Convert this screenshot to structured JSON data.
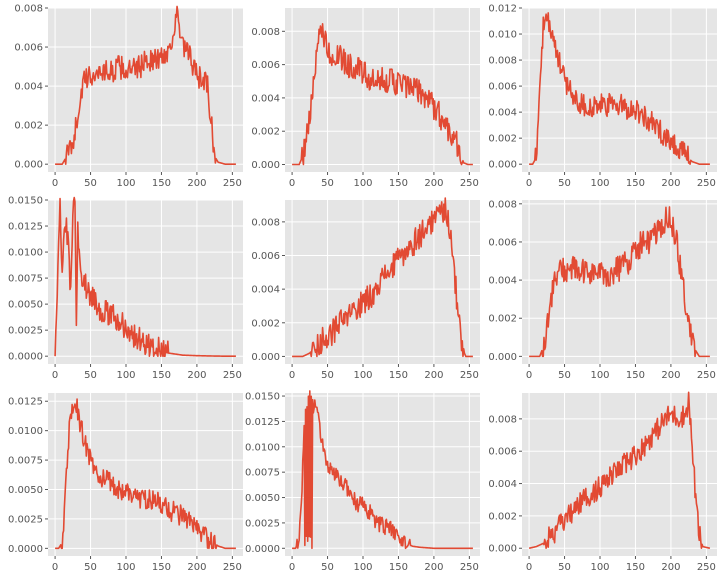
{
  "style": {
    "line_color": "#e24a33",
    "panel_background": "#e5e5e5",
    "grid_color": "#ffffff",
    "tick_label_color": "#555555"
  },
  "chart_data": [
    {
      "type": "line",
      "grid": true,
      "xlim": [
        -10,
        265
      ],
      "ylim": [
        -0.0004,
        0.008
      ],
      "xticks": [
        0,
        50,
        100,
        150,
        200,
        250
      ],
      "xtick_labels": [
        "0",
        "50",
        "100",
        "150",
        "200",
        "250"
      ],
      "yticks": [
        0,
        0.002,
        0.004,
        0.006,
        0.008
      ],
      "ytick_labels": [
        "0.000",
        "0.002",
        "0.004",
        "0.006",
        "0.008"
      ],
      "x": [
        0,
        10,
        18,
        25,
        30,
        35,
        40,
        50,
        60,
        70,
        80,
        90,
        100,
        110,
        120,
        130,
        140,
        150,
        160,
        170,
        172,
        175,
        180,
        190,
        200,
        210,
        215,
        218,
        222,
        225,
        230,
        240,
        255
      ],
      "values": [
        0,
        0,
        0.0005,
        0.0012,
        0.002,
        0.0033,
        0.0042,
        0.0045,
        0.0047,
        0.0048,
        0.0047,
        0.005,
        0.0048,
        0.0048,
        0.005,
        0.0054,
        0.0053,
        0.0055,
        0.0058,
        0.0072,
        0.0077,
        0.0069,
        0.006,
        0.0055,
        0.0045,
        0.0043,
        0.004,
        0.0028,
        0.0015,
        0.0004,
        0.0001,
        0,
        0
      ],
      "noise": 0.0006
    },
    {
      "type": "line",
      "grid": true,
      "xlim": [
        -10,
        265
      ],
      "ylim": [
        -0.00045,
        0.0094
      ],
      "xticks": [
        0,
        50,
        100,
        150,
        200,
        250
      ],
      "xtick_labels": [
        "0",
        "50",
        "100",
        "150",
        "200",
        "250"
      ],
      "yticks": [
        0,
        0.002,
        0.004,
        0.006,
        0.008
      ],
      "ytick_labels": [
        "0.000",
        "0.002",
        "0.004",
        "0.006",
        "0.008"
      ],
      "x": [
        0,
        10,
        15,
        20,
        25,
        30,
        35,
        40,
        45,
        50,
        60,
        70,
        80,
        90,
        100,
        110,
        120,
        130,
        140,
        150,
        160,
        170,
        180,
        190,
        200,
        210,
        220,
        230,
        238,
        242,
        248,
        255
      ],
      "values": [
        0,
        0,
        0.0005,
        0.0015,
        0.003,
        0.0045,
        0.0065,
        0.0085,
        0.0078,
        0.0068,
        0.0065,
        0.0063,
        0.006,
        0.0058,
        0.0055,
        0.005,
        0.0048,
        0.0052,
        0.005,
        0.0049,
        0.0047,
        0.0045,
        0.0044,
        0.004,
        0.0035,
        0.0028,
        0.0022,
        0.0016,
        0.0006,
        0.0001,
        0,
        0
      ],
      "noise": 0.0008
    },
    {
      "type": "line",
      "grid": true,
      "xlim": [
        -10,
        265
      ],
      "ylim": [
        -0.0006,
        0.012
      ],
      "xticks": [
        0,
        50,
        100,
        150,
        200,
        250
      ],
      "xtick_labels": [
        "0",
        "50",
        "100",
        "150",
        "200",
        "250"
      ],
      "yticks": [
        0,
        0.002,
        0.004,
        0.006,
        0.008,
        0.01,
        0.012
      ],
      "ytick_labels": [
        "0.000",
        "0.002",
        "0.004",
        "0.006",
        "0.008",
        "0.010",
        "0.012"
      ],
      "x": [
        0,
        5,
        10,
        12,
        15,
        18,
        20,
        25,
        30,
        35,
        40,
        45,
        50,
        55,
        60,
        70,
        80,
        90,
        100,
        110,
        120,
        130,
        140,
        150,
        160,
        170,
        180,
        190,
        200,
        210,
        220,
        230,
        240,
        255
      ],
      "values": [
        0,
        0,
        0.0005,
        0.002,
        0.006,
        0.009,
        0.0105,
        0.011,
        0.0105,
        0.0095,
        0.008,
        0.0075,
        0.0065,
        0.006,
        0.0055,
        0.0048,
        0.0045,
        0.0043,
        0.0045,
        0.0045,
        0.0046,
        0.0045,
        0.0043,
        0.0042,
        0.0038,
        0.0033,
        0.0028,
        0.0023,
        0.0018,
        0.0013,
        0.0007,
        0.0002,
        0,
        0
      ],
      "noise": 0.0009
    },
    {
      "type": "line",
      "grid": true,
      "xlim": [
        -10,
        265
      ],
      "ylim": [
        -0.00075,
        0.015
      ],
      "xticks": [
        0,
        50,
        100,
        150,
        200,
        250
      ],
      "xtick_labels": [
        "0",
        "50",
        "100",
        "150",
        "200",
        "250"
      ],
      "yticks": [
        0,
        0.0025,
        0.005,
        0.0075,
        0.01,
        0.0125,
        0.015
      ],
      "ytick_labels": [
        "0.0000",
        "0.0025",
        "0.0050",
        "0.0075",
        "0.0100",
        "0.0125",
        "0.0150"
      ],
      "x": [
        0,
        3,
        5,
        7,
        10,
        14,
        18,
        22,
        25,
        28,
        30,
        32,
        35,
        40,
        45,
        50,
        60,
        70,
        80,
        90,
        100,
        110,
        120,
        130,
        140,
        150,
        160,
        170,
        180,
        200,
        220,
        240,
        255
      ],
      "values": [
        0,
        0.005,
        0.012,
        0.0148,
        0.008,
        0.0135,
        0.011,
        0.006,
        0.014,
        0.0145,
        0.003,
        0.012,
        0.0085,
        0.0075,
        0.0065,
        0.006,
        0.0048,
        0.0042,
        0.0038,
        0.0035,
        0.0028,
        0.002,
        0.0016,
        0.0012,
        0.0008,
        0.0005,
        0.0003,
        0.0002,
        0.0001,
        5e-05,
        2e-05,
        0,
        0
      ],
      "noise": 0.0012
    },
    {
      "type": "line",
      "grid": true,
      "xlim": [
        -10,
        265
      ],
      "ylim": [
        -0.00045,
        0.0093
      ],
      "xticks": [
        0,
        50,
        100,
        150,
        200,
        250
      ],
      "xtick_labels": [
        "0",
        "50",
        "100",
        "150",
        "200",
        "250"
      ],
      "yticks": [
        0,
        0.002,
        0.004,
        0.006,
        0.008
      ],
      "ytick_labels": [
        "0.000",
        "0.002",
        "0.004",
        "0.006",
        "0.008"
      ],
      "x": [
        0,
        15,
        25,
        30,
        40,
        50,
        60,
        70,
        80,
        90,
        100,
        110,
        120,
        130,
        140,
        150,
        160,
        170,
        180,
        190,
        200,
        210,
        215,
        220,
        225,
        230,
        235,
        240,
        245,
        255
      ],
      "values": [
        0,
        0,
        0.0002,
        0.0005,
        0.0008,
        0.0012,
        0.0016,
        0.002,
        0.0024,
        0.0028,
        0.0032,
        0.0036,
        0.0042,
        0.0048,
        0.0052,
        0.0057,
        0.0062,
        0.0067,
        0.0072,
        0.0077,
        0.0082,
        0.0085,
        0.0089,
        0.0084,
        0.0065,
        0.0045,
        0.002,
        0.0005,
        0,
        0
      ],
      "noise": 0.0008
    },
    {
      "type": "line",
      "grid": true,
      "xlim": [
        -10,
        265
      ],
      "ylim": [
        -0.0004,
        0.0082
      ],
      "xticks": [
        0,
        50,
        100,
        150,
        200,
        250
      ],
      "xtick_labels": [
        "0",
        "50",
        "100",
        "150",
        "200",
        "250"
      ],
      "yticks": [
        0,
        0.002,
        0.004,
        0.006,
        0.008
      ],
      "ytick_labels": [
        "0.000",
        "0.002",
        "0.004",
        "0.006",
        "0.008"
      ],
      "x": [
        0,
        15,
        20,
        25,
        30,
        35,
        40,
        50,
        60,
        70,
        80,
        90,
        100,
        110,
        120,
        130,
        140,
        150,
        160,
        170,
        180,
        190,
        195,
        200,
        205,
        210,
        215,
        220,
        225,
        230,
        240,
        255
      ],
      "values": [
        0,
        0,
        0.0005,
        0.0015,
        0.0028,
        0.0038,
        0.0044,
        0.0045,
        0.0046,
        0.0045,
        0.0043,
        0.0045,
        0.0043,
        0.0042,
        0.0045,
        0.0047,
        0.005,
        0.0056,
        0.006,
        0.006,
        0.0064,
        0.0068,
        0.0075,
        0.007,
        0.0065,
        0.0055,
        0.0042,
        0.003,
        0.0018,
        0.0006,
        0,
        0
      ],
      "noise": 0.0007
    },
    {
      "type": "line",
      "grid": true,
      "xlim": [
        -10,
        265
      ],
      "ylim": [
        -0.00065,
        0.0132
      ],
      "xticks": [
        0,
        50,
        100,
        150,
        200,
        250
      ],
      "xtick_labels": [
        "0",
        "50",
        "100",
        "150",
        "200",
        "250"
      ],
      "yticks": [
        0,
        0.0025,
        0.005,
        0.0075,
        0.01,
        0.0125
      ],
      "ytick_labels": [
        "0.0000",
        "0.0025",
        "0.0050",
        "0.0075",
        "0.0100",
        "0.0125"
      ],
      "x": [
        0,
        5,
        10,
        15,
        20,
        25,
        28,
        30,
        35,
        40,
        45,
        50,
        60,
        70,
        80,
        90,
        100,
        110,
        120,
        130,
        140,
        150,
        160,
        170,
        180,
        190,
        200,
        210,
        220,
        230,
        240,
        255
      ],
      "values": [
        0,
        0,
        0.0005,
        0.005,
        0.01,
        0.0118,
        0.0128,
        0.0122,
        0.0105,
        0.0095,
        0.0085,
        0.0075,
        0.0062,
        0.0058,
        0.0055,
        0.005,
        0.0048,
        0.0045,
        0.0043,
        0.0042,
        0.004,
        0.0038,
        0.0033,
        0.003,
        0.0027,
        0.0022,
        0.0015,
        0.001,
        0.0006,
        0.0002,
        0,
        0
      ],
      "noise": 0.0009
    },
    {
      "type": "line",
      "grid": true,
      "xlim": [
        -10,
        265
      ],
      "ylim": [
        -0.00076,
        0.0153
      ],
      "xticks": [
        0,
        50,
        100,
        150,
        200,
        250
      ],
      "xtick_labels": [
        "0",
        "50",
        "100",
        "150",
        "200",
        "250"
      ],
      "yticks": [
        0,
        0.0025,
        0.005,
        0.0075,
        0.01,
        0.0125,
        0.015
      ],
      "ytick_labels": [
        "0.0000",
        "0.0025",
        "0.0050",
        "0.0075",
        "0.0100",
        "0.0125",
        "0.0150"
      ],
      "x": [
        0,
        5,
        10,
        12,
        15,
        17,
        18,
        19,
        20,
        21,
        22,
        23,
        24,
        25,
        26,
        27,
        28,
        29,
        30,
        33,
        36,
        40,
        45,
        50,
        60,
        70,
        80,
        90,
        100,
        110,
        120,
        130,
        140,
        150,
        160,
        170,
        180,
        200,
        220,
        240,
        255
      ],
      "values": [
        0,
        0,
        0.001,
        0.003,
        0.008,
        0.012,
        0.0005,
        0.013,
        0.0005,
        0.014,
        0.0005,
        0.0148,
        0.0005,
        0.015,
        0.0005,
        0.0145,
        0.0005,
        0.014,
        0.014,
        0.0142,
        0.013,
        0.0115,
        0.0095,
        0.008,
        0.0072,
        0.0065,
        0.0058,
        0.0045,
        0.0042,
        0.0035,
        0.0025,
        0.0022,
        0.0018,
        0.0012,
        0.0005,
        0.0002,
        0.0001,
        0,
        0,
        0,
        0
      ],
      "noise": 0.0008
    },
    {
      "type": "line",
      "grid": true,
      "xlim": [
        -10,
        265
      ],
      "ylim": [
        -0.00048,
        0.0096
      ],
      "xticks": [
        0,
        50,
        100,
        150,
        200,
        250
      ],
      "xtick_labels": [
        "0",
        "50",
        "100",
        "150",
        "200",
        "250"
      ],
      "yticks": [
        0,
        0.002,
        0.004,
        0.006,
        0.008
      ],
      "ytick_labels": [
        "0.000",
        "0.002",
        "0.004",
        "0.006",
        "0.008"
      ],
      "x": [
        0,
        10,
        20,
        30,
        40,
        50,
        60,
        70,
        80,
        90,
        100,
        110,
        120,
        130,
        140,
        150,
        160,
        170,
        180,
        190,
        200,
        210,
        220,
        225,
        228,
        232,
        236,
        240,
        245,
        255
      ],
      "values": [
        0,
        0.0001,
        0.0003,
        0.0007,
        0.0012,
        0.0017,
        0.0022,
        0.0027,
        0.0031,
        0.0034,
        0.0038,
        0.0042,
        0.0046,
        0.005,
        0.0054,
        0.0058,
        0.0062,
        0.0068,
        0.0073,
        0.0079,
        0.0083,
        0.0081,
        0.0082,
        0.0092,
        0.0075,
        0.005,
        0.0025,
        0.0008,
        0.0001,
        0
      ],
      "noise": 0.0007
    }
  ]
}
